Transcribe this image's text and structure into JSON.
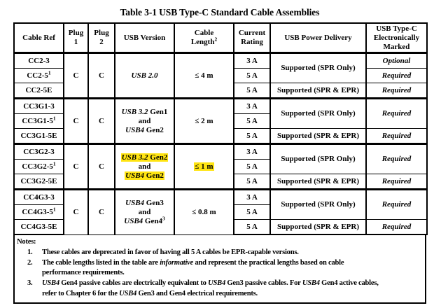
{
  "title": "Table 3-1  USB Type-C Standard Cable Assemblies",
  "columns": [
    "Cable Ref",
    "Plug\n1",
    "Plug\n2",
    "USB Version",
    "Cable\nLength^2^",
    "Current\nRating",
    "USB Power Delivery",
    "USB Type-C\nElectronically\nMarked"
  ],
  "groups": [
    {
      "refs": [
        "CC2-3",
        "CC2-5^1^",
        "CC2-5E"
      ],
      "plug1": "C",
      "plug2": "C",
      "usb_version": "*USB 2.0*",
      "cable_length": "≤ 4 m",
      "currents": [
        "3 A",
        "5 A",
        "5 A"
      ],
      "power_delivery_top": "Supported (SPR Only)",
      "power_delivery_bottom": "Supported (SPR & EPR)",
      "marked_split": true,
      "marked": [
        "*Optional*",
        "*Required*",
        "*Required*"
      ]
    },
    {
      "refs": [
        "CC3G1-3",
        "CC3G1-5^1^",
        "CC3G1-5E"
      ],
      "plug1": "C",
      "plug2": "C",
      "usb_version": "*USB 3.2* Gen1\nand\n*USB4* Gen2",
      "cable_length": "≤ 2 m",
      "currents": [
        "3 A",
        "5 A",
        "5 A"
      ],
      "power_delivery_top": "Supported (SPR Only)",
      "power_delivery_bottom": "Supported (SPR & EPR)",
      "marked_split": false,
      "marked": [
        "*Required*",
        "*Required*"
      ]
    },
    {
      "refs": [
        "CC3G2-3",
        "CC3G2-5^1^",
        "CC3G2-5E"
      ],
      "plug1": "C",
      "plug2": "C",
      "usb_version": "~*USB 3.2* Gen2~\nand\n~*USB4* Gen2~",
      "cable_length": "~≤ 1 m~",
      "currents": [
        "3 A",
        "5 A",
        "5 A"
      ],
      "power_delivery_top": "Supported (SPR Only)",
      "power_delivery_bottom": "Supported (SPR & EPR)",
      "marked_split": false,
      "marked": [
        "*Required*",
        "*Required*"
      ]
    },
    {
      "refs": [
        "CC4G3-3",
        "CC4G3-5^1^",
        "CC4G3-5E"
      ],
      "plug1": "C",
      "plug2": "C",
      "usb_version": "*USB4* Gen3\nand\n*USB4* Gen4^3^",
      "cable_length": "≤ 0.8 m",
      "currents": [
        "3 A",
        "5 A",
        "5 A"
      ],
      "power_delivery_top": "Supported (SPR Only)",
      "power_delivery_bottom": "Supported (SPR & EPR)",
      "marked_split": false,
      "marked": [
        "*Required*",
        "*Required*"
      ]
    }
  ],
  "notes": {
    "label": "Notes:",
    "items": [
      "These cables are deprecated in favor of having all 5 A cables be EPR-capable versions.",
      "The cable lengths listed in the table are *informative* and represent the practical lengths based on cable\nperformance requirements.",
      "*USB4* Gen4 passive cables are electrically equivalent to *USB4* Gen3 passive cables.  For *USB4* Gen4 active cables,\nrefer to Chapter 6 for the *USB4* Gen3 and Gen4 electrical requirements."
    ]
  },
  "colors": {
    "highlight_yellow": "#ffe412",
    "text": "#000000",
    "border": "#000000",
    "background": "#ffffff"
  }
}
